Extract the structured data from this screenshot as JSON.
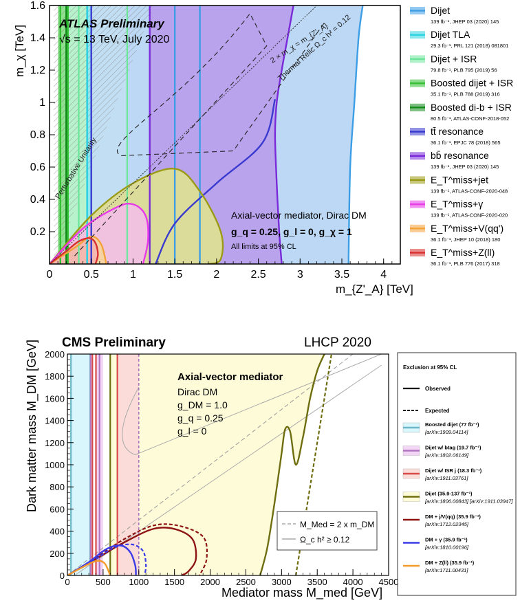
{
  "chart_data": [
    {
      "type": "area",
      "title": "ATLAS Preliminary",
      "subtitle": "√s = 13 TeV, July 2020",
      "xlabel": "m_{Z'_A} [TeV]",
      "ylabel": "m_χ [TeV]",
      "xlim": [
        0,
        4.2
      ],
      "ylim": [
        0,
        1.6
      ],
      "x_ticks": [
        "0",
        "0.5",
        "1",
        "1.5",
        "2",
        "2.5",
        "3",
        "3.5",
        "4"
      ],
      "y_ticks": [
        "0.2",
        "0.4",
        "0.6",
        "0.8",
        "1",
        "1.2",
        "1.4",
        "1.6"
      ],
      "annotation_main": "Axial-vector mediator, Dirac DM",
      "annotation_couplings": "g_q = 0.25, g_l = 0, g_χ = 1",
      "annotation_cl": "All limits at 95% CL",
      "label_unitarity": "Perturbative Unitarity",
      "label_relic": "Thermal Relic Ω_c h² = 0.12",
      "label_diag": "2 × m_χ = m_{Z'_A}",
      "legend": [
        {
          "name": "Dijet",
          "ref": "139 fb⁻¹, JHEP 03 (2020) 145",
          "color": "#3d9ee6"
        },
        {
          "name": "Dijet TLA",
          "ref": "29.3 fb⁻¹, PRL 121 (2018) 081801",
          "color": "#2fd3e2"
        },
        {
          "name": "Dijet + ISR",
          "ref": "79.8 fb⁻¹, PLB 795 (2019) 56",
          "color": "#6fe59c"
        },
        {
          "name": "Boosted dijet + ISR",
          "ref": "35.1 fb⁻¹, PLB 788 (2019) 316",
          "color": "#33c033"
        },
        {
          "name": "Boosted di-b + ISR",
          "ref": "80.5 fb⁻¹, ATLAS-CONF-2018-052",
          "color": "#128a1a"
        },
        {
          "name": "tt̄ resonance",
          "ref": "36.1 fb⁻¹, EPJC 78 (2018) 565",
          "color": "#3a3ad0"
        },
        {
          "name": "bb̄ resonance",
          "ref": "139 fb⁻¹, JHEP 03 (2020) 145",
          "color": "#7a2ad8"
        },
        {
          "name": "E_T^miss+jet",
          "ref": "139 fb⁻¹, ATLAS-CONF-2020-048",
          "color": "#9a9a14"
        },
        {
          "name": "E_T^miss+γ",
          "ref": "139 fb⁻¹, ATLAS-CONF-2020-020",
          "color": "#e83ae8"
        },
        {
          "name": "E_T^miss+V(qq')",
          "ref": "36.1 fb⁻¹, JHEP 10 (2018) 180",
          "color": "#f3a23a"
        },
        {
          "name": "E_T^miss+Z(ll)",
          "ref": "36.1 fb⁻¹, PLB 776 (2017) 318",
          "color": "#d83030"
        }
      ],
      "vertical_limits": [
        {
          "name": "Dijet",
          "x": [
            0.45,
            1.5,
            1.8
          ],
          "color": "#3d9ee6"
        },
        {
          "name": "Dijet TLA",
          "x": [
            0.45
          ],
          "color": "#2fd3e2"
        },
        {
          "name": "Dijet + ISR",
          "x": [
            0.35,
            0.93
          ],
          "color": "#6fe59c"
        },
        {
          "name": "Boosted dijet + ISR",
          "x": [
            0.13,
            0.22
          ],
          "color": "#33c033"
        },
        {
          "name": "Boosted di-b + ISR",
          "x": [
            0.2
          ],
          "color": "#128a1a"
        },
        {
          "name": "tt̄ resonance",
          "x": [
            0.5
          ],
          "color": "#3a3ad0"
        },
        {
          "name": "bb̄ resonance",
          "x": [
            1.2
          ],
          "color": "#7a2ad8"
        }
      ],
      "series": [
        {
          "name": "Dijet",
          "x": [
            3.58,
            3.6,
            3.65,
            3.7,
            3.75
          ],
          "y": [
            0,
            0.6,
            1.0,
            1.4,
            1.6
          ]
        },
        {
          "name": "bb̄ resonance",
          "x": [
            2.78,
            2.75,
            2.72,
            2.7,
            2.72,
            2.78,
            2.85,
            2.92
          ],
          "y": [
            0,
            0.2,
            0.5,
            0.8,
            1.0,
            1.2,
            1.4,
            1.6
          ]
        },
        {
          "name": "tt̄ resonance",
          "x": [
            1.27,
            1.5,
            2.0,
            2.55,
            2.7
          ],
          "y": [
            0,
            0.25,
            0.5,
            0.75,
            1.02
          ]
        },
        {
          "name": "E_T^miss+jet",
          "x": [
            0,
            0.5,
            1.0,
            1.5,
            1.8,
            2.05,
            2.05,
            1.9
          ],
          "y": [
            0,
            0.3,
            0.5,
            0.59,
            0.45,
            0.2,
            0.03,
            0
          ]
        },
        {
          "name": "E_T^miss+γ",
          "x": [
            0,
            0.4,
            0.8,
            1.0,
            1.15,
            1.18,
            1.12
          ],
          "y": [
            0,
            0.22,
            0.35,
            0.37,
            0.3,
            0.15,
            0
          ]
        },
        {
          "name": "E_T^miss+V(qq')",
          "x": [
            0,
            0.3,
            0.5,
            0.62,
            0.68
          ],
          "y": [
            0,
            0.1,
            0.17,
            0.12,
            0
          ]
        },
        {
          "name": "E_T^miss+Z(ll)",
          "x": [
            0,
            0.2,
            0.35,
            0.48,
            0.55,
            0.58,
            0.55
          ],
          "y": [
            0,
            0.08,
            0.14,
            0.16,
            0.13,
            0.06,
            0
          ]
        }
      ]
    },
    {
      "type": "area",
      "title": "CMS Preliminary",
      "label_right": "LHCP 2020",
      "xlabel": "Mediator mass M_med [GeV]",
      "ylabel": "Dark matter mass M_DM [GeV]",
      "xlim": [
        0,
        4500
      ],
      "ylim": [
        0,
        2000
      ],
      "x_ticks": [
        "0",
        "500",
        "1000",
        "1500",
        "2000",
        "2500",
        "3000",
        "3500",
        "4000",
        "4500"
      ],
      "y_ticks": [
        "0",
        "200",
        "400",
        "600",
        "800",
        "1000",
        "1200",
        "1400",
        "1600",
        "1800",
        "2000"
      ],
      "annotation_main": "Axial-vector mediator",
      "annotation_lines": [
        "Dirac DM",
        "g_DM = 1.0",
        "g_q = 0.25",
        "g_l = 0"
      ],
      "inset_legend": [
        "M_Med = 2 x m_DM",
        "Ω_c h² ≥ 0.12"
      ],
      "legend_header": "Exclusion at 95% CL",
      "legend_observed": "Observed",
      "legend_expected": "Expected",
      "legend": [
        {
          "name": "Boosted dijet (77 fb⁻¹)",
          "ref": "[arXiv:1909.04114]",
          "color": "#6cb6c8",
          "fill": "#d8f6fb"
        },
        {
          "name": "Dijet w/ btag (19.7 fb⁻¹)",
          "ref": "[arXiv:1802.06149]",
          "color": "#b075c0",
          "fill": "#f3d6f5"
        },
        {
          "name": "Dijet w/ ISR j (18.3 fb⁻¹)",
          "ref": "[arXiv:1911.03761]",
          "color": "#d84a4a",
          "fill": "#fbdcd8"
        },
        {
          "name": "Dijet (35.9-137 fb⁻¹)",
          "ref": "[arXiv:1806.00843] [arXiv:1911.03947]",
          "color": "#6e6e10",
          "fill": "#fdfbd8"
        },
        {
          "name": "DM + j/V(qq) (35.9 fb⁻¹)",
          "ref": "[arXiv:1712.02345]",
          "color": "#8e1414",
          "fill": ""
        },
        {
          "name": "DM + γ (35.9 fb⁻¹)",
          "ref": "[arXiv:1810.00196]",
          "color": "#3a3ae8",
          "fill": ""
        },
        {
          "name": "DM + Z(ll) (35.9 fb⁻¹)",
          "ref": "[arXiv:1711.00431]",
          "color": "#f39a2a",
          "fill": ""
        }
      ],
      "vertical_limits": [
        {
          "name": "Boosted dijet",
          "x": [
            50,
            320
          ],
          "color": "#6cb6c8"
        },
        {
          "name": "Dijet w/ btag",
          "x": [
            325,
            450
          ],
          "color": "#b075c0"
        },
        {
          "name": "Dijet w/ ISR j",
          "x": [
            350,
            400,
            700
          ],
          "color": "#d84a4a"
        },
        {
          "name": "Dijet",
          "x": [
            600
          ],
          "color": "#6e6e10"
        }
      ],
      "series": [
        {
          "name": "Dijet observed",
          "x": [
            2700,
            2800,
            2900,
            3000,
            3050,
            3120,
            3200,
            3300,
            3400,
            3500,
            3600
          ],
          "y": [
            0,
            250,
            650,
            1100,
            1320,
            1300,
            1000,
            1250,
            1600,
            1850,
            2000
          ]
        },
        {
          "name": "Dijet expected",
          "x": [
            3200,
            3300,
            3400,
            3500,
            3600,
            3700
          ],
          "y": [
            0,
            400,
            800,
            1200,
            1600,
            2000
          ]
        },
        {
          "name": "DM + j/V(qq) observed",
          "x": [
            0,
            400,
            800,
            1200,
            1500,
            1750,
            1800,
            1700,
            1600
          ],
          "y": [
            0,
            150,
            300,
            420,
            420,
            330,
            150,
            40,
            0
          ]
        },
        {
          "name": "DM + j/V(qq) expected",
          "x": [
            0,
            400,
            800,
            1200,
            1550,
            1900,
            1950,
            1850
          ],
          "y": [
            0,
            160,
            330,
            450,
            450,
            350,
            150,
            0
          ]
        },
        {
          "name": "DM + γ observed",
          "x": [
            0,
            300,
            550,
            750,
            880,
            950,
            960
          ],
          "y": [
            0,
            120,
            240,
            270,
            210,
            90,
            0
          ]
        },
        {
          "name": "DM + γ expected",
          "x": [
            0,
            350,
            650,
            900,
            1060,
            1100,
            1080
          ],
          "y": [
            0,
            130,
            250,
            280,
            220,
            90,
            0
          ]
        },
        {
          "name": "DM + Z(ll) observed",
          "x": [
            0,
            200,
            400,
            520,
            600
          ],
          "y": [
            0,
            70,
            130,
            110,
            0
          ]
        }
      ]
    }
  ]
}
